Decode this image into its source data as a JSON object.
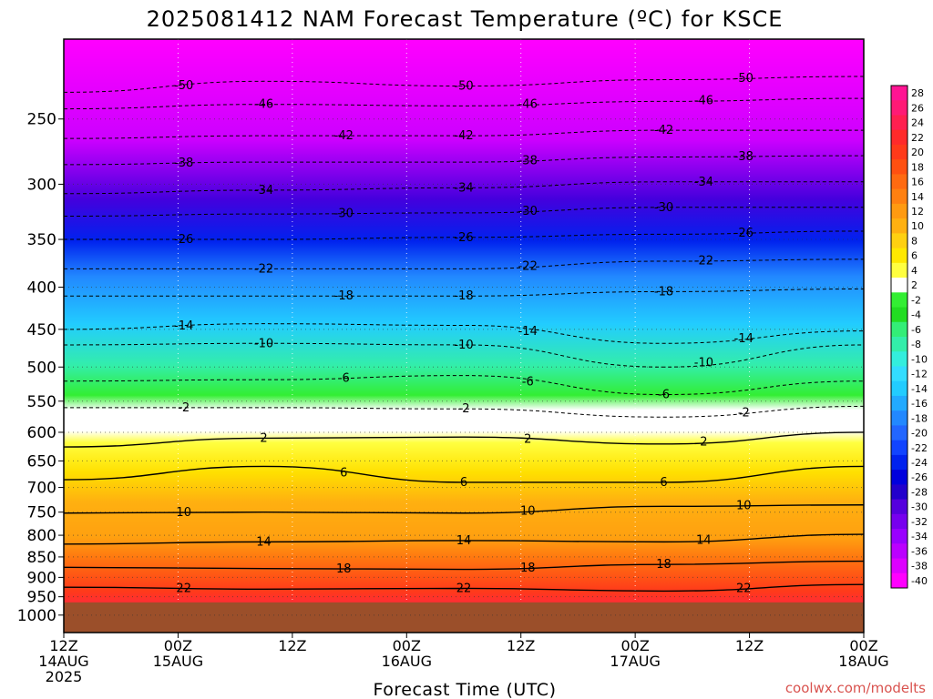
{
  "chart_data": {
    "type": "heatmap",
    "title": "2025081412 NAM Forecast Temperature (ºC) for KSCE",
    "xlabel": "Forecast Time (UTC)",
    "ylabel": "",
    "credit": "coolwx.com/modelts",
    "x_ticks": [
      {
        "hours": 0,
        "line1": "12Z",
        "line2": "14AUG",
        "line3": "2025"
      },
      {
        "hours": 12,
        "line1": "00Z",
        "line2": "15AUG",
        "line3": ""
      },
      {
        "hours": 24,
        "line1": "12Z",
        "line2": "",
        "line3": ""
      },
      {
        "hours": 36,
        "line1": "00Z",
        "line2": "16AUG",
        "line3": ""
      },
      {
        "hours": 48,
        "line1": "12Z",
        "line2": "",
        "line3": ""
      },
      {
        "hours": 60,
        "line1": "00Z",
        "line2": "17AUG",
        "line3": ""
      },
      {
        "hours": 72,
        "line1": "12Z",
        "line2": "",
        "line3": ""
      },
      {
        "hours": 84,
        "line1": "00Z",
        "line2": "18AUG",
        "line3": ""
      }
    ],
    "y_ticks": [
      "250",
      "300",
      "350",
      "400",
      "450",
      "500",
      "550",
      "600",
      "650",
      "700",
      "750",
      "800",
      "850",
      "900",
      "950",
      "1000"
    ],
    "y_tick_values": [
      250,
      300,
      350,
      400,
      450,
      500,
      550,
      600,
      650,
      700,
      750,
      800,
      850,
      900,
      950,
      1000
    ],
    "y_axis": "pressure (hPa), log scale, top 200 bottom 1050",
    "surface_pressure_hPa": 965,
    "colorbar_labels": [
      "28",
      "26",
      "24",
      "22",
      "20",
      "18",
      "16",
      "14",
      "12",
      "10",
      "8",
      "6",
      "4",
      "2",
      "-2",
      "-4",
      "-6",
      "-8",
      "-10",
      "-12",
      "-14",
      "-16",
      "-18",
      "-20",
      "-22",
      "-24",
      "-26",
      "-28",
      "-30",
      "-32",
      "-34",
      "-36",
      "-38",
      "-40"
    ],
    "colorbar_colors": [
      "#ff1493",
      "#ff1a75",
      "#ff2050",
      "#ff2a2a",
      "#ff3a1a",
      "#ff5010",
      "#ff6a10",
      "#ff8010",
      "#ff9a10",
      "#ffb010",
      "#ffd010",
      "#ffe800",
      "#ffff40",
      "#ffffff",
      "#33ee33",
      "#22dd22",
      "#33ee77",
      "#33eeaa",
      "#33eedd",
      "#33ddff",
      "#22ccff",
      "#22aaff",
      "#2288ff",
      "#2266ff",
      "#1144ff",
      "#0022ee",
      "#0000dd",
      "#2200cc",
      "#5500dd",
      "#7700ee",
      "#9900ff",
      "#bb00ff",
      "#dd00ff",
      "#ff00ff"
    ],
    "isotherms": [
      {
        "value": -50,
        "label": "-50",
        "p": [
          232,
          225,
          228,
          224,
          222
        ]
      },
      {
        "value": -46,
        "label": "-46",
        "p": [
          243,
          240,
          241,
          238,
          236
        ]
      },
      {
        "value": -42,
        "label": "-42",
        "p": [
          264,
          262,
          262,
          258,
          258
        ]
      },
      {
        "value": -38,
        "label": "-38",
        "p": [
          284,
          282,
          282,
          278,
          277
        ]
      },
      {
        "value": -34,
        "label": "-34",
        "p": [
          308,
          305,
          303,
          298,
          298
        ]
      },
      {
        "value": -30,
        "label": "-30",
        "p": [
          328,
          326,
          325,
          320,
          320
        ]
      },
      {
        "value": -26,
        "label": "-26",
        "p": [
          350,
          350,
          348,
          345,
          342
        ]
      },
      {
        "value": -22,
        "label": "-22",
        "p": [
          380,
          380,
          380,
          372,
          370
        ]
      },
      {
        "value": -18,
        "label": "-18",
        "p": [
          410,
          410,
          410,
          405,
          402
        ]
      },
      {
        "value": -14,
        "label": "-14",
        "p": [
          450,
          443,
          445,
          468,
          452
        ]
      },
      {
        "value": -10,
        "label": "-10",
        "p": [
          470,
          468,
          470,
          500,
          470
        ]
      },
      {
        "value": -6,
        "label": "-6",
        "p": [
          520,
          518,
          512,
          540,
          520
        ]
      },
      {
        "value": -2,
        "label": "-2",
        "p": [
          560,
          560,
          562,
          575,
          558
        ]
      },
      {
        "value": 2,
        "label": "2",
        "p": [
          625,
          610,
          608,
          620,
          600
        ]
      },
      {
        "value": 6,
        "label": "6",
        "p": [
          685,
          660,
          690,
          690,
          660
        ]
      },
      {
        "value": 10,
        "label": "10",
        "p": [
          752,
          750,
          752,
          738,
          735
        ]
      },
      {
        "value": 14,
        "label": "14",
        "p": [
          820,
          815,
          812,
          815,
          798
        ]
      },
      {
        "value": 18,
        "label": "18",
        "p": [
          875,
          878,
          880,
          868,
          860
        ]
      },
      {
        "value": 22,
        "label": "22",
        "p": [
          925,
          930,
          928,
          935,
          918
        ]
      }
    ]
  }
}
